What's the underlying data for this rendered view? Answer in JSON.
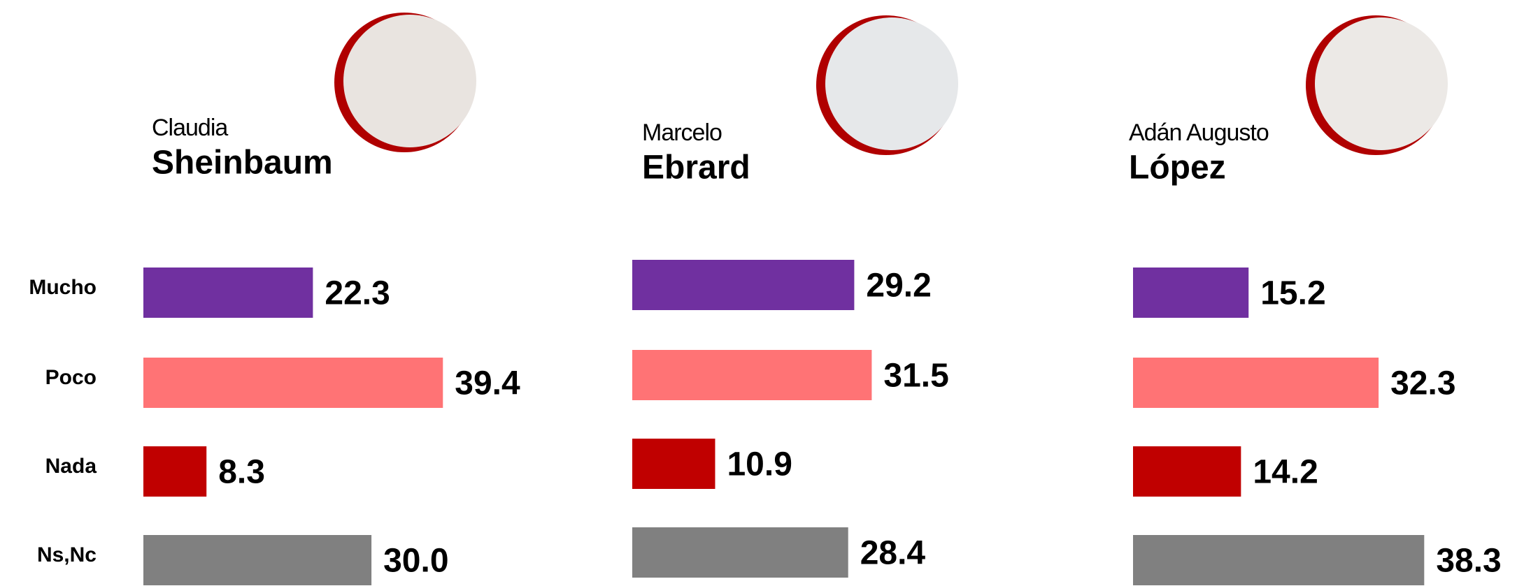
{
  "chart_data": [
    {
      "type": "bar",
      "subtitle": "Claudia",
      "title": "Sheinbaum",
      "categories": [
        "Mucho",
        "Poco",
        "Nada",
        "Ns,Nc"
      ],
      "values": [
        22.3,
        39.4,
        8.3,
        30
      ],
      "value_labels": [
        "22.3",
        "39.4",
        "8.3",
        "30.0"
      ],
      "colors": [
        "#7030a0",
        "#ff7375",
        "#c00000",
        "#808080"
      ]
    },
    {
      "type": "bar",
      "subtitle": "Marcelo",
      "title": "Ebrard",
      "values": [
        29.2,
        31.5,
        10.9,
        28.4
      ],
      "value_labels": [
        "29.2",
        "31.5",
        "10.9",
        "28.4"
      ],
      "colors": [
        "#7030a0",
        "#ff7375",
        "#c00000",
        "#808080"
      ]
    },
    {
      "type": "bar",
      "subtitle": "Adán Augusto",
      "title": "López",
      "values": [
        15.2,
        32.3,
        14.2,
        38.3
      ],
      "value_labels": [
        "15.2",
        "32.3",
        "14.2",
        "38.3"
      ],
      "colors": [
        "#7030a0",
        "#ff7375",
        "#c00000",
        "#808080"
      ]
    }
  ]
}
